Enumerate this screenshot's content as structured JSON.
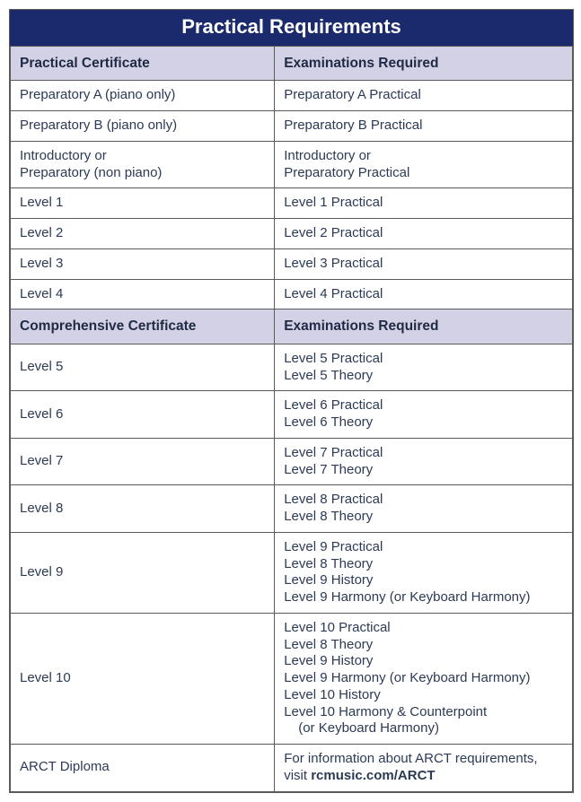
{
  "title": "Practical Requirements",
  "section1": {
    "col1": "Practical Certificate",
    "col2": "Examinations Required"
  },
  "section2": {
    "col1": "Comprehensive Certificate",
    "col2": "Examinations Required"
  },
  "rows1": [
    {
      "cert": "Preparatory A (piano only)",
      "exam": "Preparatory A Practical"
    },
    {
      "cert": "Preparatory B (piano only)",
      "exam": "Preparatory B Practical"
    },
    {
      "cert": "Introductory or\nPreparatory (non piano)",
      "exam": "Introductory or\nPreparatory Practical"
    },
    {
      "cert": "Level 1",
      "exam": "Level 1 Practical"
    },
    {
      "cert": "Level 2",
      "exam": "Level 2 Practical"
    },
    {
      "cert": "Level 3",
      "exam": "Level 3 Practical"
    },
    {
      "cert": "Level 4",
      "exam": "Level 4 Practical"
    }
  ],
  "rows2": [
    {
      "cert": "Level 5",
      "exam": "Level 5 Practical\nLevel 5 Theory"
    },
    {
      "cert": "Level 6",
      "exam": "Level 6 Practical\nLevel 6 Theory"
    },
    {
      "cert": "Level 7",
      "exam": "Level 7 Practical\nLevel 7 Theory"
    },
    {
      "cert": "Level 8",
      "exam": "Level 8 Practical\nLevel 8 Theory"
    },
    {
      "cert": "Level 9",
      "exam": "Level 9 Practical\nLevel 8 Theory\nLevel 9 History\nLevel 9 Harmony (or Keyboard Harmony)"
    },
    {
      "cert": "Level 10",
      "exam": "Level 10 Practical\nLevel 8 Theory\nLevel 9 History\nLevel 9 Harmony (or Keyboard Harmony)\nLevel 10 History\nLevel 10 Harmony & Counterpoint\n (or Keyboard Harmony)"
    }
  ],
  "arct": {
    "cert": "ARCT Diploma",
    "text1": "For information about ARCT requirements, visit ",
    "bold": "rcmusic.com/ARCT"
  }
}
